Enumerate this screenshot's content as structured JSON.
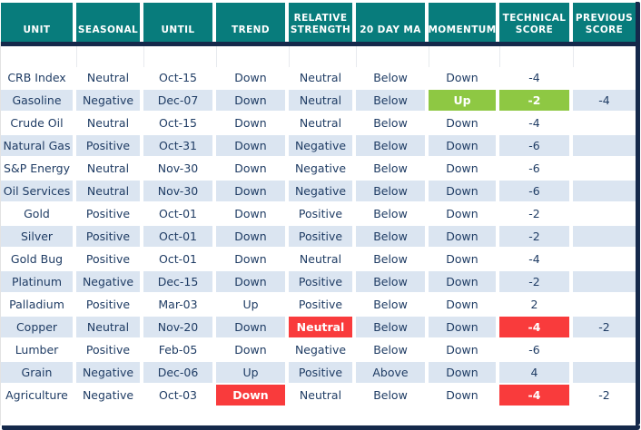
{
  "colors": {
    "header_bg": "#087c7c",
    "frame": "#15294b",
    "stripe": "#dbe5f1",
    "text": "#1f3c64",
    "red": "#f93b3c",
    "green": "#8ec843"
  },
  "table": {
    "headers": [
      "UNIT",
      "SEASONAL",
      "UNTIL",
      "TREND",
      "RELATIVE STRENGTH",
      "20 DAY MA",
      "MOMENTUM",
      "TECHNICAL SCORE",
      "PREVIOUS SCORE"
    ],
    "rows": [
      [
        "CRB Index",
        "Neutral",
        "Oct-15",
        "Down",
        "Neutral",
        "Below",
        "Down",
        "-4",
        ""
      ],
      [
        "Gasoline",
        "Negative",
        "Dec-07",
        "Down",
        "Neutral",
        "Below",
        "Up",
        "-2",
        "-4"
      ],
      [
        "Crude Oil",
        "Neutral",
        "Oct-15",
        "Down",
        "Neutral",
        "Below",
        "Down",
        "-4",
        ""
      ],
      [
        "Natural Gas",
        "Positive",
        "Oct-31",
        "Down",
        "Negative",
        "Below",
        "Down",
        "-6",
        ""
      ],
      [
        "S&P Energy",
        "Neutral",
        "Nov-30",
        "Down",
        "Negative",
        "Below",
        "Down",
        "-6",
        ""
      ],
      [
        "Oil Services",
        "Neutral",
        "Nov-30",
        "Down",
        "Negative",
        "Below",
        "Down",
        "-6",
        ""
      ],
      [
        "Gold",
        "Positive",
        "Oct-01",
        "Down",
        "Positive",
        "Below",
        "Down",
        "-2",
        ""
      ],
      [
        "Silver",
        "Positive",
        "Oct-01",
        "Down",
        "Positive",
        "Below",
        "Down",
        "-2",
        ""
      ],
      [
        "Gold Bug",
        "Positive",
        "Oct-01",
        "Down",
        "Neutral",
        "Below",
        "Down",
        "-4",
        ""
      ],
      [
        "Platinum",
        "Negative",
        "Dec-15",
        "Down",
        "Positive",
        "Below",
        "Down",
        "-2",
        ""
      ],
      [
        "Palladium",
        "Positive",
        "Mar-03",
        "Up",
        "Positive",
        "Below",
        "Down",
        "2",
        ""
      ],
      [
        "Copper",
        "Neutral",
        "Nov-20",
        "Down",
        "Neutral",
        "Below",
        "Down",
        "-4",
        "-2"
      ],
      [
        "Lumber",
        "Positive",
        "Feb-05",
        "Down",
        "Negative",
        "Below",
        "Down",
        "-6",
        ""
      ],
      [
        "Grain",
        "Negative",
        "Dec-06",
        "Up",
        "Positive",
        "Above",
        "Down",
        "4",
        ""
      ],
      [
        "Agriculture",
        "Negative",
        "Oct-03",
        "Down",
        "Neutral",
        "Below",
        "Down",
        "-4",
        "-2"
      ]
    ],
    "highlights": [
      {
        "row": 1,
        "col": 6,
        "color": "green"
      },
      {
        "row": 1,
        "col": 7,
        "color": "green"
      },
      {
        "row": 11,
        "col": 4,
        "color": "red"
      },
      {
        "row": 11,
        "col": 7,
        "color": "red"
      },
      {
        "row": 14,
        "col": 3,
        "color": "red"
      },
      {
        "row": 14,
        "col": 7,
        "color": "red"
      }
    ]
  }
}
